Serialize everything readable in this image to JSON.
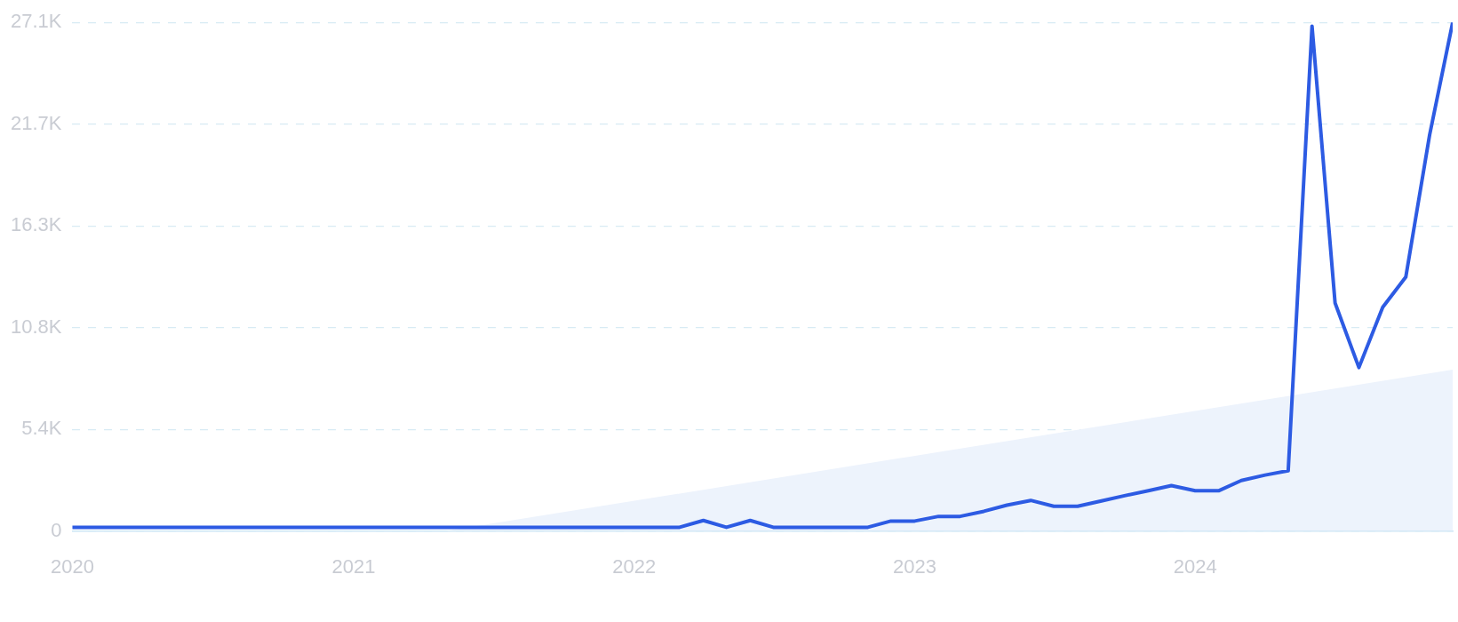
{
  "chart_data": {
    "type": "line",
    "x": [
      "2020-01",
      "2020-02",
      "2020-03",
      "2020-04",
      "2020-05",
      "2020-06",
      "2020-07",
      "2020-08",
      "2020-09",
      "2020-10",
      "2020-11",
      "2020-12",
      "2021-01",
      "2021-02",
      "2021-03",
      "2021-04",
      "2021-05",
      "2021-06",
      "2021-07",
      "2021-08",
      "2021-09",
      "2021-10",
      "2021-11",
      "2021-12",
      "2022-01",
      "2022-02",
      "2022-03",
      "2022-04",
      "2022-05",
      "2022-06",
      "2022-07",
      "2022-08",
      "2022-09",
      "2022-10",
      "2022-11",
      "2022-12",
      "2023-01",
      "2023-02",
      "2023-03",
      "2023-04",
      "2023-05",
      "2023-06",
      "2023-07",
      "2023-08",
      "2023-09",
      "2023-10",
      "2023-11",
      "2023-12",
      "2024-01",
      "2024-02",
      "2024-03",
      "2024-04",
      "2024-05",
      "2024-06",
      "2024-07",
      "2024-08",
      "2024-09",
      "2024-10",
      "2024-11",
      "2024-12"
    ],
    "series": [
      {
        "type": "area",
        "color": "#edf3fc",
        "x": [
          "2021-05",
          "2024-12"
        ],
        "values": [
          0,
          8600
        ]
      },
      {
        "color": "#2d5be3",
        "values": [
          200,
          200,
          200,
          200,
          200,
          200,
          200,
          200,
          200,
          200,
          200,
          200,
          200,
          200,
          200,
          200,
          200,
          200,
          200,
          200,
          200,
          200,
          200,
          200,
          200,
          200,
          200,
          560,
          200,
          560,
          200,
          200,
          200,
          200,
          200,
          530,
          530,
          780,
          780,
          1050,
          1380,
          1630,
          1320,
          1320,
          1600,
          1880,
          2150,
          2420,
          2150,
          2150,
          2690,
          2980,
          3210,
          26900,
          12150,
          8710,
          11920,
          13530,
          21100,
          27100
        ]
      }
    ],
    "xlim": [
      "2020-01",
      "2024-12"
    ],
    "xticks": [
      "2020",
      "2021",
      "2022",
      "2023",
      "2024"
    ],
    "ylim": [
      0,
      27100
    ],
    "yticks": [
      0,
      {
        "value": 5420,
        "label": "5.4K"
      },
      {
        "value": 10840,
        "label": "10.8K"
      },
      {
        "value": 16260,
        "label": "16.3K"
      },
      {
        "value": 21680,
        "label": "21.7K"
      },
      {
        "value": 27100,
        "label": "27.1K"
      }
    ],
    "grid": "y",
    "legend": false,
    "marker": "none",
    "line_style": "solid"
  }
}
